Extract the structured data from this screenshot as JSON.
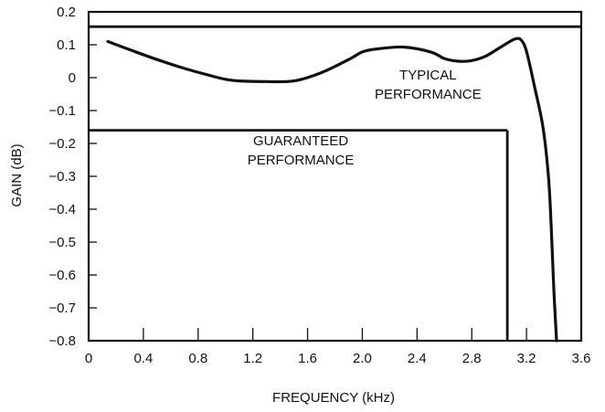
{
  "chart_data": {
    "type": "line",
    "title": "",
    "xlabel": "FREQUENCY (kHz)",
    "ylabel": "GAIN (dB)",
    "xlim": [
      0,
      3.6
    ],
    "ylim": [
      -0.8,
      0.2
    ],
    "x_ticks": [
      "0",
      "0.4",
      "0.8",
      "1.2",
      "1.6",
      "2.0",
      "2.4",
      "2.8",
      "3.2",
      "3.6"
    ],
    "y_ticks": [
      "0.2",
      "0.1",
      "0",
      "−0.1",
      "−0.2",
      "−0.3",
      "−0.4",
      "−0.5",
      "−0.6",
      "−0.7",
      "−0.8"
    ],
    "grid": false,
    "annotations": [
      {
        "lines": [
          "TYPICAL",
          "PERFORMANCE"
        ],
        "x": 2.48,
        "y": -0.005
      },
      {
        "lines": [
          "GUARANTEED",
          "PERFORMANCE"
        ],
        "x": 1.55,
        "y": -0.205
      }
    ],
    "series": [
      {
        "x": [
          0.14,
          0.3,
          0.5,
          0.7,
          0.9,
          1.0,
          1.1,
          1.3,
          1.5,
          1.7,
          1.9,
          2.0,
          2.1,
          2.3,
          2.5,
          2.6,
          2.7,
          2.8,
          2.9,
          3.0,
          3.08,
          3.12,
          3.16,
          3.2,
          3.26,
          3.32,
          3.36,
          3.38,
          3.4,
          3.42
        ],
        "y": [
          0.11,
          0.085,
          0.055,
          0.028,
          0.005,
          -0.005,
          -0.01,
          -0.012,
          -0.01,
          0.015,
          0.055,
          0.078,
          0.087,
          0.093,
          0.078,
          0.058,
          0.05,
          0.052,
          0.065,
          0.09,
          0.11,
          0.118,
          0.115,
          0.08,
          -0.03,
          -0.15,
          -0.3,
          -0.45,
          -0.65,
          -0.8
        ]
      }
    ],
    "guaranteed_limits": {
      "upper_gain_db": 0.155,
      "lower_gain_db": -0.16,
      "passband_edge_khz": 3.06
    }
  }
}
